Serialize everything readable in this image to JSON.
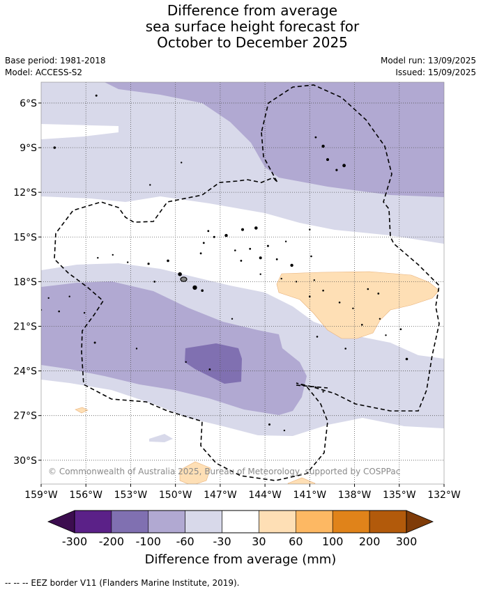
{
  "title": {
    "line1": "Difference from average",
    "line2": "sea surface height forecast for",
    "line3": "October to December 2025"
  },
  "meta": {
    "base_period": "Base period: 1981-2018",
    "model": "Model: ACCESS-S2",
    "model_run": "Model run: 13/09/2025",
    "issued": "Issued: 15/09/2025"
  },
  "map": {
    "lon_labels": [
      "159°W",
      "156°W",
      "153°W",
      "150°W",
      "147°W",
      "144°W",
      "141°W",
      "138°W",
      "135°W",
      "132°W"
    ],
    "lat_labels": [
      "6°S",
      "9°S",
      "12°S",
      "15°S",
      "18°S",
      "21°S",
      "24°S",
      "27°S",
      "30°S"
    ],
    "copyright": "© Commonwealth of Australia 2025, Bureau of Meteorology, supported by COSPPac",
    "colors": {
      "land": "#000000",
      "eez": "#000000",
      "grid": "#555555"
    }
  },
  "colorbar": {
    "tick_labels": [
      "-300",
      "-200",
      "-100",
      "-60",
      "-30",
      "30",
      "60",
      "100",
      "200",
      "300"
    ],
    "colors": [
      "#3c0d4f",
      "#5b2188",
      "#8070b1",
      "#b1a9d2",
      "#d8d9ea",
      "#ffffff",
      "#fedfb5",
      "#fdb863",
      "#e0831a",
      "#b25a0b",
      "#7f3b08"
    ],
    "label": "Difference from average (mm)"
  },
  "footer": "--  --  -- EEZ border V11 (Flanders Marine Institute, 2019)."
}
